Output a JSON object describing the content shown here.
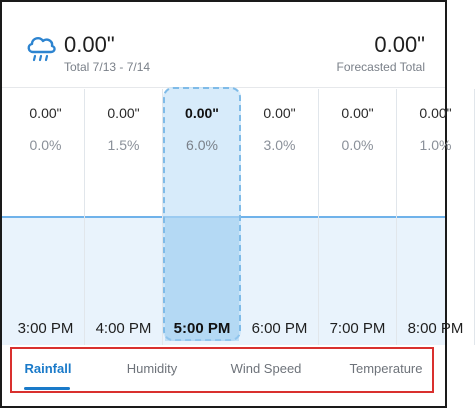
{
  "summary": {
    "icon": "rain-cloud-icon",
    "total_value": "0.00\"",
    "total_label": "Total 7/13 - 7/14",
    "forecast_value": "0.00\"",
    "forecast_label": "Forecasted Total"
  },
  "colors": {
    "accent": "#1a7ac9",
    "selected_fill": "#b7dbf5",
    "chart_fill": "#e9f3fc",
    "chart_line": "#6fb2ea",
    "tab_outline": "#d9302e"
  },
  "hours": [
    {
      "amount": "0.00\"",
      "chance": "0.0%",
      "time": "3:00 PM",
      "selected": false
    },
    {
      "amount": "0.00\"",
      "chance": "1.5%",
      "time": "4:00 PM",
      "selected": false
    },
    {
      "amount": "0.00\"",
      "chance": "6.0%",
      "time": "5:00 PM",
      "selected": true
    },
    {
      "amount": "0.00\"",
      "chance": "3.0%",
      "time": "6:00 PM",
      "selected": false
    },
    {
      "amount": "0.00\"",
      "chance": "0.0%",
      "time": "7:00 PM",
      "selected": false
    },
    {
      "amount": "0.00\"",
      "chance": "1.0%",
      "time": "8:00 PM",
      "selected": false
    }
  ],
  "tabs": [
    {
      "label": "Rainfall",
      "active": true
    },
    {
      "label": "Humidity",
      "active": false
    },
    {
      "label": "Wind Speed",
      "active": false
    },
    {
      "label": "Temperature",
      "active": false
    }
  ]
}
